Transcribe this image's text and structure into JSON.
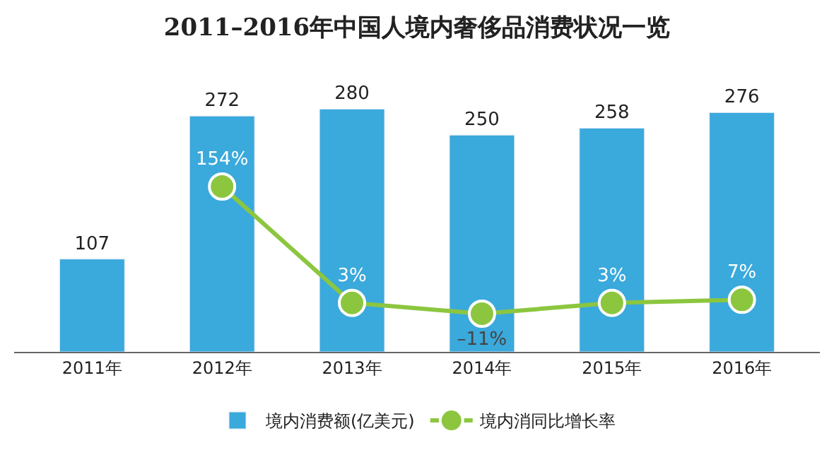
{
  "chart_data": {
    "type": "bar",
    "title": "2011–2016年中国人境内奢侈品消费状况一览",
    "categories": [
      "2011年",
      "2012年",
      "2013年",
      "2014年",
      "2015年",
      "2016年"
    ],
    "series": [
      {
        "name": "境内消费额(亿美元)",
        "color": "#3aa9dc",
        "values": [
          107,
          272,
          280,
          250,
          258,
          276
        ],
        "value_labels": [
          "107",
          "272",
          "280",
          "250",
          "258",
          "276"
        ]
      },
      {
        "name": "境内消同比增长率",
        "type": "line",
        "axis": "y2",
        "color": "#8cc63f",
        "marker": "circle",
        "values": [
          null,
          154,
          3,
          -11,
          3,
          7
        ],
        "value_labels": [
          null,
          "154%",
          "3%",
          "–11%",
          "3%",
          "7%"
        ]
      }
    ],
    "tick_labels": "x",
    "legend": "bottom"
  }
}
